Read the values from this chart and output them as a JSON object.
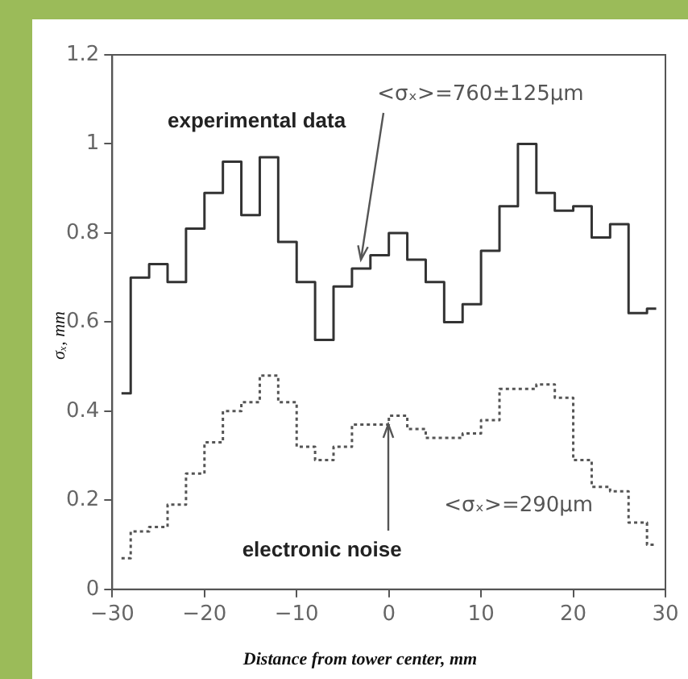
{
  "chart_data": {
    "type": "step",
    "xlabel": "Distance from tower center, mm",
    "ylabel": "σₓ, mm",
    "x": [
      -29,
      -27,
      -25,
      -23,
      -21,
      -19,
      -17,
      -15,
      -13,
      -11,
      -9,
      -7,
      -5,
      -3,
      -1,
      1,
      3,
      5,
      7,
      9,
      11,
      13,
      15,
      17,
      19,
      21,
      23,
      25,
      27,
      29
    ],
    "series": [
      {
        "color": "#333333",
        "line_style": "solid",
        "values": [
          0.44,
          0.7,
          0.73,
          0.69,
          0.81,
          0.89,
          0.96,
          0.84,
          0.97,
          0.78,
          0.69,
          0.56,
          0.68,
          0.72,
          0.75,
          0.8,
          0.74,
          0.69,
          0.6,
          0.64,
          0.76,
          0.86,
          1.0,
          0.89,
          0.85,
          0.86,
          0.79,
          0.82,
          0.62,
          0.63
        ]
      },
      {
        "color": "#555555",
        "line_style": "dotted",
        "values": [
          0.07,
          0.13,
          0.14,
          0.19,
          0.26,
          0.33,
          0.4,
          0.42,
          0.48,
          0.42,
          0.32,
          0.29,
          0.32,
          0.37,
          0.37,
          0.39,
          0.36,
          0.34,
          0.34,
          0.35,
          0.38,
          0.45,
          0.45,
          0.46,
          0.43,
          0.29,
          0.23,
          0.22,
          0.15,
          0.1
        ]
      }
    ],
    "annotations": [
      "experimental data",
      {
        "text": "<σₓ>=760±125μm",
        "x": -3,
        "y": 0.74
      },
      {
        "text": "electronic noise",
        "x": 0,
        "y": 0.37
      },
      "<σₓ>=290μm"
    ],
    "xlim": [
      -30,
      30
    ],
    "xticks": [
      -30,
      -20,
      -10,
      0,
      10,
      20,
      30
    ],
    "ylim": [
      0,
      1.2
    ],
    "yticks": [
      0,
      0.2,
      0.4,
      0.6,
      0.8,
      1,
      1.2
    ],
    "grid": false,
    "legend": false
  }
}
